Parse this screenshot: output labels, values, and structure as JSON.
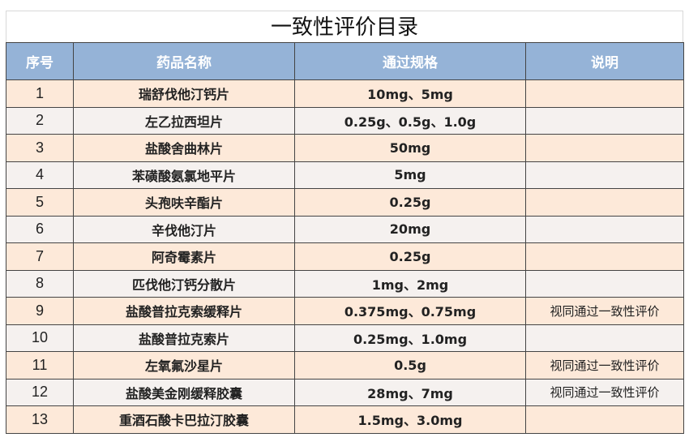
{
  "title": "一致性评价目录",
  "columns": [
    "序号",
    "药品名称",
    "通过规格",
    "说明"
  ],
  "rows": [
    {
      "no": "1",
      "name": "瑞舒伐他汀钙片",
      "spec": "10mg、5mg",
      "note": ""
    },
    {
      "no": "2",
      "name": "左乙拉西坦片",
      "spec": "0.25g、0.5g、1.0g",
      "note": ""
    },
    {
      "no": "3",
      "name": "盐酸舍曲林片",
      "spec": "50mg",
      "note": ""
    },
    {
      "no": "4",
      "name": "苯磺酸氨氯地平片",
      "spec": "5mg",
      "note": ""
    },
    {
      "no": "5",
      "name": "头孢呋辛酯片",
      "spec": "0.25g",
      "note": ""
    },
    {
      "no": "6",
      "name": "辛伐他汀片",
      "spec": "20mg",
      "note": ""
    },
    {
      "no": "7",
      "name": "阿奇霉素片",
      "spec": "0.25g",
      "note": ""
    },
    {
      "no": "8",
      "name": "匹伐他汀钙分散片",
      "spec": "1mg、2mg",
      "note": ""
    },
    {
      "no": "9",
      "name": "盐酸普拉克索缓释片",
      "spec": "0.375mg、0.75mg",
      "note": "视同通过一致性评价"
    },
    {
      "no": "10",
      "name": "盐酸普拉克索片",
      "spec": "0.25mg、1.0mg",
      "note": ""
    },
    {
      "no": "11",
      "name": "左氧氟沙星片",
      "spec": "0.5g",
      "note": "视同通过一致性评价"
    },
    {
      "no": "12",
      "name": "盐酸美金刚缓释胶囊",
      "spec": "28mg、7mg",
      "note": "视同通过一致性评价"
    },
    {
      "no": "13",
      "name": "重酒石酸卡巴拉汀胶囊",
      "spec": "1.5mg、3.0mg",
      "note": ""
    }
  ],
  "colors": {
    "header": "#95b3d7",
    "row_odd": "#fde9d9",
    "row_even": "#f5f1ef"
  }
}
